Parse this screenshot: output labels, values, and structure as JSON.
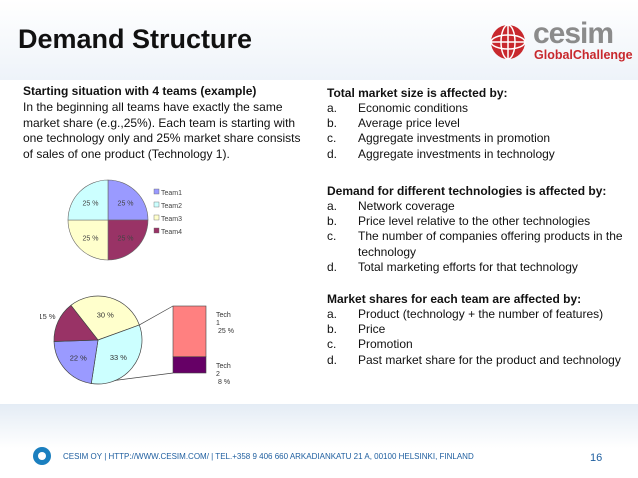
{
  "slide": {
    "title": "Demand Structure",
    "page_number": "16",
    "footer_text": "CESIM OY | HTTP://WWW.CESIM.COM/ | TEL.+358 9 406 660    ARKADIANKATU 21 A, 00100 HELSINKI, FINLAND"
  },
  "logo": {
    "word": "cesim",
    "sub": "GlobalChallenge"
  },
  "left": {
    "heading": "Starting situation with 4 teams (example)",
    "paragraph": "In the beginning all teams have exactly the same market share (e.g.,25%). Each team is starting with one technology only  and 25% market share consists of sales of one product (Technology 1)."
  },
  "sections": [
    {
      "heading": "Total market size is affected by:",
      "items": [
        {
          "letter": "a.",
          "text": "Economic conditions"
        },
        {
          "letter": "b.",
          "text": "Average price level"
        },
        {
          "letter": "c.",
          "text": "Aggregate investments in promotion"
        },
        {
          "letter": "d.",
          "text": "Aggregate investments in technology"
        }
      ]
    },
    {
      "heading": "Demand for different technologies is affected by:",
      "items": [
        {
          "letter": "a.",
          "text": "Network coverage"
        },
        {
          "letter": "b.",
          "text": "Price level relative to the other technologies"
        },
        {
          "letter": "c.",
          "text": "The number of companies offering products in the  technology"
        },
        {
          "letter": "d.",
          "text": "Total marketing efforts for that technology"
        }
      ]
    },
    {
      "heading": "Market shares for each team are affected by:",
      "items": [
        {
          "letter": "a.",
          "text": "Product (technology + the number of features)"
        },
        {
          "letter": "b.",
          "text": "Price"
        },
        {
          "letter": "c.",
          "text": "Promotion"
        },
        {
          "letter": "d.",
          "text": "Past market share for the product and technology"
        }
      ]
    }
  ],
  "chart_data": [
    {
      "type": "pie",
      "labels": [
        "Team1",
        "Team2",
        "Team3",
        "Team4"
      ],
      "values": [
        25,
        25,
        25,
        25
      ],
      "value_labels": [
        "25 %",
        "25 %",
        "25 %",
        "25 %"
      ],
      "colors": [
        "#9a9aff",
        "#993366",
        "#ffffcc",
        "#ccffff"
      ],
      "legend": [
        "Team1",
        "Team2",
        "Team3",
        "Team4"
      ],
      "legend_colors": [
        "#9a9aff",
        "#ccffff",
        "#ffffcc",
        "#993366"
      ],
      "legend_position": "right"
    },
    {
      "type": "pie",
      "labels": [
        "30 %",
        "33 %",
        "22 %",
        "15 %"
      ],
      "values": [
        30,
        33,
        22,
        15
      ],
      "colors": [
        "#ffffcc",
        "#ccffff",
        "#9a9aff",
        "#993366"
      ],
      "breakout": {
        "type": "bar",
        "categories": [
          "Tech 1",
          "Tech 2"
        ],
        "values": [
          25,
          8
        ],
        "value_labels": [
          "25 %",
          "8 %"
        ],
        "colors": [
          "#ff8080",
          "#660066"
        ]
      }
    }
  ]
}
